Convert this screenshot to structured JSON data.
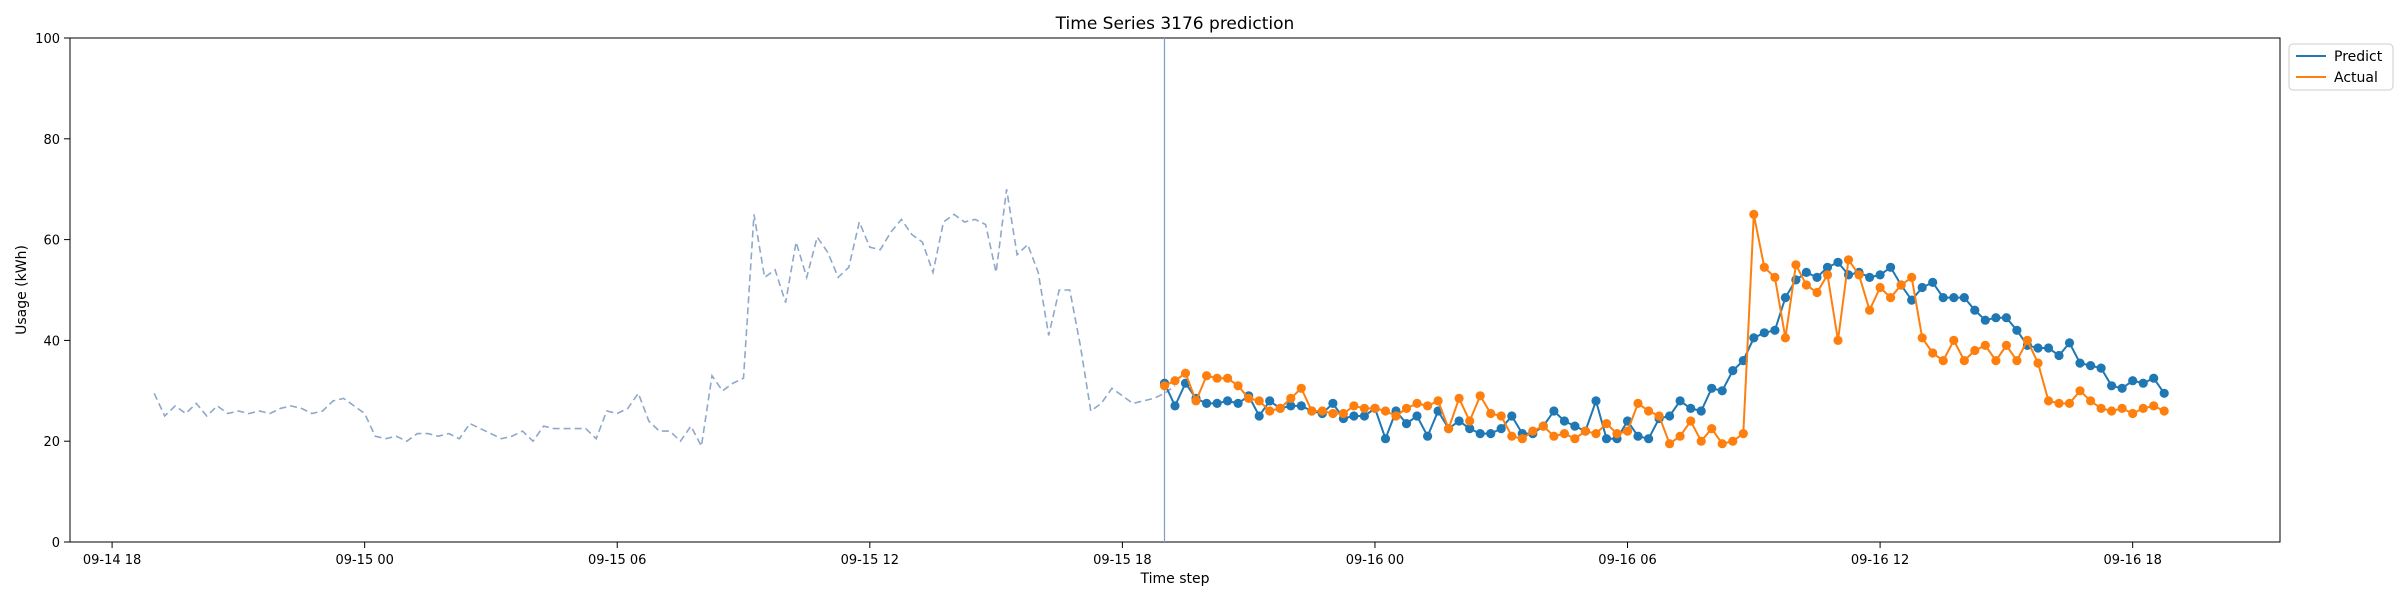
{
  "chart_data": {
    "type": "line",
    "title": "Time Series 3176 prediction",
    "xlabel": "Time step",
    "ylabel": "Usage (kWh)",
    "ylim": [
      0,
      100
    ],
    "xlim": [
      "2024-09-14 17:00",
      "2024-09-16 21:30"
    ],
    "yticks": [
      0,
      20,
      40,
      60,
      80,
      100
    ],
    "xticks": [
      {
        "label": "09-14 18",
        "x": "2024-09-14 18:00"
      },
      {
        "label": "09-15 00",
        "x": "2024-09-15 00:00"
      },
      {
        "label": "09-15 06",
        "x": "2024-09-15 06:00"
      },
      {
        "label": "09-15 12",
        "x": "2024-09-15 12:00"
      },
      {
        "label": "09-15 18",
        "x": "2024-09-15 18:00"
      },
      {
        "label": "09-16 00",
        "x": "2024-09-16 00:00"
      },
      {
        "label": "09-16 06",
        "x": "2024-09-16 06:00"
      },
      {
        "label": "09-16 12",
        "x": "2024-09-16 12:00"
      },
      {
        "label": "09-16 18",
        "x": "2024-09-16 18:00"
      }
    ],
    "grid": false,
    "legend_position": "upper right, outside plot",
    "forecast_start": "2024-09-15 19:00",
    "colors": {
      "history": "#8ea8cc",
      "predict": "#1f77b4",
      "actual": "#ff7f0e",
      "divider": "#7f9acb"
    },
    "history": {
      "start": "2024-09-14 19:00",
      "step_minutes": 15,
      "values": [
        29.5,
        25.0,
        27.0,
        25.5,
        27.5,
        25.0,
        27.0,
        25.5,
        26.0,
        25.5,
        26.0,
        25.5,
        26.5,
        27.0,
        26.5,
        25.5,
        26.0,
        28.0,
        28.5,
        27.0,
        25.5,
        21.0,
        20.5,
        21.0,
        20.0,
        21.5,
        21.5,
        21.0,
        21.5,
        20.5,
        23.5,
        22.5,
        21.5,
        20.5,
        21.0,
        22.0,
        20.0,
        23.0,
        22.5,
        22.5,
        22.5,
        22.5,
        20.5,
        26.0,
        25.5,
        26.5,
        29.5,
        24.0,
        22.0,
        22.0,
        20.0,
        23.0,
        19.0,
        33.0,
        30.0,
        31.5,
        32.5,
        65.0,
        52.5,
        54.0,
        47.5,
        59.5,
        52.5,
        60.5,
        57.5,
        52.5,
        54.5,
        63.5,
        58.5,
        58.0,
        61.5,
        64.0,
        61.0,
        59.5,
        53.5,
        63.5,
        65.0,
        63.5,
        64.0,
        63.0,
        53.5,
        70.0,
        57.0,
        59.0,
        53.5,
        41.0,
        50.0,
        50.0,
        39.0,
        26.0,
        27.5,
        30.5,
        29.0,
        27.5,
        28.0,
        28.5,
        29.5,
        31.0
      ]
    },
    "series": [
      {
        "name": "Predict",
        "start": "2024-09-15 19:00",
        "step_minutes": 15,
        "values": [
          31.5,
          27.0,
          31.5,
          28.5,
          27.5,
          27.5,
          28.0,
          27.5,
          29.0,
          25.0,
          28.0,
          26.5,
          27.0,
          27.0,
          26.0,
          25.5,
          27.5,
          24.5,
          25.0,
          25.0,
          26.5,
          20.5,
          26.0,
          23.5,
          25.0,
          21.0,
          26.0,
          22.5,
          24.0,
          22.5,
          21.5,
          21.5,
          22.5,
          25.0,
          21.5,
          21.5,
          23.0,
          26.0,
          24.0,
          23.0,
          22.0,
          28.0,
          20.5,
          20.5,
          24.0,
          21.0,
          20.5,
          24.5,
          25.0,
          28.0,
          26.5,
          26.0,
          30.5,
          30.0,
          34.0,
          36.0,
          40.5,
          41.5,
          42.0,
          48.5,
          52.0,
          53.5,
          52.5,
          54.5,
          55.5,
          53.0,
          53.5,
          52.5,
          53.0,
          54.5,
          51.0,
          48.0,
          50.5,
          51.5,
          48.5,
          48.5,
          48.5,
          46.0,
          44.0,
          44.5,
          44.5,
          42.0,
          39.0,
          38.5,
          38.5,
          37.0,
          39.5,
          35.5,
          35.0,
          34.5,
          31.0,
          30.5,
          32.0,
          31.5,
          32.5,
          29.5
        ]
      },
      {
        "name": "Actual",
        "start": "2024-09-15 19:00",
        "step_minutes": 15,
        "values": [
          31.0,
          32.0,
          33.5,
          28.0,
          33.0,
          32.5,
          32.5,
          31.0,
          28.5,
          28.0,
          26.0,
          26.5,
          28.5,
          30.5,
          26.0,
          26.0,
          25.5,
          25.5,
          27.0,
          26.5,
          26.5,
          26.0,
          25.0,
          26.5,
          27.5,
          27.0,
          28.0,
          22.5,
          28.5,
          24.0,
          29.0,
          25.5,
          25.0,
          21.0,
          20.5,
          22.0,
          23.0,
          21.0,
          21.5,
          20.5,
          22.0,
          21.5,
          23.5,
          21.5,
          22.0,
          27.5,
          26.0,
          25.0,
          19.5,
          21.0,
          24.0,
          20.0,
          22.5,
          19.5,
          20.0,
          21.5,
          65.0,
          54.5,
          52.5,
          40.5,
          55.0,
          51.0,
          49.5,
          53.0,
          40.0,
          56.0,
          53.0,
          46.0,
          50.5,
          48.5,
          51.0,
          52.5,
          40.5,
          37.5,
          36.0,
          40.0,
          36.0,
          38.0,
          39.0,
          36.0,
          39.0,
          36.0,
          40.0,
          35.5,
          28.0,
          27.5,
          27.5,
          30.0,
          28.0,
          26.5,
          26.0,
          26.5,
          25.5,
          26.5,
          27.0,
          26.0
        ]
      }
    ]
  }
}
